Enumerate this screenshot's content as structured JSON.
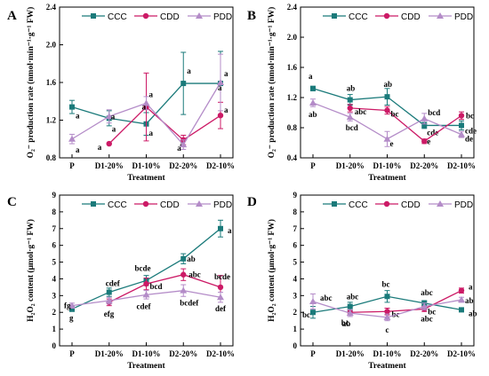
{
  "series_style": [
    {
      "color": "#1a7a7a",
      "marker": "square"
    },
    {
      "color": "#cc1a66",
      "marker": "circle"
    },
    {
      "color": "#b48cc8",
      "marker": "triangle"
    }
  ],
  "chart_data": [
    {
      "panel": "A",
      "type": "line",
      "categories": [
        "P",
        "D1-20%",
        "D1-10%",
        "D2-20%",
        "D2-10%"
      ],
      "xlabel": "Treatment",
      "ylabel": "O₂⁻ production rate (nmol·min⁻¹·g⁻¹ FW)",
      "ylim": [
        0.8,
        2.4
      ],
      "yticks": [
        "0.8",
        "1.2",
        "1.6",
        "2.0",
        "2.4"
      ],
      "ytick_values": [
        0.8,
        1.2,
        1.6,
        2.0,
        2.4
      ],
      "legend": [
        "CCC",
        "CDD",
        "PDD"
      ],
      "series": [
        {
          "name": "CCC",
          "points": [
            {
              "x": "P",
              "y": 1.34,
              "err": 0.07
            },
            {
              "x": "D1-20%",
              "y": 1.22,
              "err": 0.08
            },
            {
              "x": "D1-10%",
              "y": 1.16,
              "err": 0.12
            },
            {
              "x": "D2-20%",
              "y": 1.59,
              "err": 0.33
            },
            {
              "x": "D2-10%",
              "y": 1.59,
              "err": 0.34
            }
          ],
          "labels": [
            "a",
            "a",
            "a",
            "a",
            "a"
          ]
        },
        {
          "name": "CDD",
          "points": [
            {
              "x": "P",
              "y": null,
              "err": null
            },
            {
              "x": "D1-20%",
              "y": 0.95,
              "err": 0.0
            },
            {
              "x": "D1-10%",
              "y": 1.34,
              "err": 0.36
            },
            {
              "x": "D2-20%",
              "y": 0.99,
              "err": 0.05
            },
            {
              "x": "D2-10%",
              "y": 1.25,
              "err": 0.14
            }
          ],
          "labels": [
            "",
            "a",
            "a",
            "a",
            "a"
          ]
        },
        {
          "name": "PDD",
          "points": [
            {
              "x": "P",
              "y": 1.0,
              "err": 0.05
            },
            {
              "x": "D1-20%",
              "y": 1.24,
              "err": 0.07
            },
            {
              "x": "D1-10%",
              "y": 1.38,
              "err": 0.07
            },
            {
              "x": "D2-20%",
              "y": 0.94,
              "err": 0.05
            },
            {
              "x": "D2-10%",
              "y": 1.6,
              "err": 0.3
            }
          ],
          "labels": [
            "a",
            "a",
            "a",
            "a",
            "a"
          ]
        }
      ]
    },
    {
      "panel": "B",
      "type": "line",
      "categories": [
        "P",
        "D1-20%",
        "D1-10%",
        "D2-20%",
        "D2-10%"
      ],
      "xlabel": "Treatment",
      "ylabel": "O₂⁻ production rate (nmol·min⁻¹·g⁻¹ FW)",
      "ylim": [
        0.4,
        2.4
      ],
      "yticks": [
        "0.4",
        "0.8",
        "1.2",
        "1.6",
        "2.0",
        "2.4"
      ],
      "ytick_values": [
        0.4,
        0.8,
        1.2,
        1.6,
        2.0,
        2.4
      ],
      "legend": [
        "CCC",
        "CDD",
        "PDD"
      ],
      "series": [
        {
          "name": "CCC",
          "points": [
            {
              "x": "P",
              "y": 1.32,
              "err": 0.03
            },
            {
              "x": "D1-20%",
              "y": 1.17,
              "err": 0.07
            },
            {
              "x": "D1-10%",
              "y": 1.21,
              "err": 0.11
            },
            {
              "x": "D2-20%",
              "y": 0.83,
              "err": 0.04
            },
            {
              "x": "D2-10%",
              "y": 0.83,
              "err": 0.06
            }
          ],
          "labels": [
            "a",
            "ab",
            "ab",
            "cde",
            "cde"
          ]
        },
        {
          "name": "CDD",
          "points": [
            {
              "x": "P",
              "y": null,
              "err": null
            },
            {
              "x": "D1-20%",
              "y": 1.06,
              "err": 0.05
            },
            {
              "x": "D1-10%",
              "y": 1.03,
              "err": 0.05
            },
            {
              "x": "D2-20%",
              "y": 0.62,
              "err": 0.03
            },
            {
              "x": "D2-10%",
              "y": 0.96,
              "err": 0.05
            }
          ],
          "labels": [
            "",
            "abc",
            "bc",
            "e",
            "bc"
          ]
        },
        {
          "name": "PDD",
          "points": [
            {
              "x": "P",
              "y": 1.13,
              "err": 0.05
            },
            {
              "x": "D1-20%",
              "y": 0.94,
              "err": 0.05
            },
            {
              "x": "D1-10%",
              "y": 0.65,
              "err": 0.1
            },
            {
              "x": "D2-20%",
              "y": 0.92,
              "err": 0.07
            },
            {
              "x": "D2-10%",
              "y": 0.71,
              "err": 0.04
            }
          ],
          "labels": [
            "ab",
            "bcd",
            "e",
            "bcd",
            "de"
          ]
        }
      ]
    },
    {
      "panel": "C",
      "type": "line",
      "categories": [
        "P",
        "D1-20%",
        "D1-10%",
        "D2-20%",
        "D2-10%"
      ],
      "xlabel": "Treatment",
      "ylabel": "H₂O₂ content (μmol·g⁻¹ FW)",
      "ylim": [
        0,
        9
      ],
      "yticks": [
        "0",
        "1",
        "2",
        "3",
        "4",
        "5",
        "6",
        "7",
        "8",
        "9"
      ],
      "ytick_values": [
        0,
        1,
        2,
        3,
        4,
        5,
        6,
        7,
        8,
        9
      ],
      "legend": [
        "CCC",
        "CDD",
        "PDD"
      ],
      "series": [
        {
          "name": "CCC",
          "points": [
            {
              "x": "P",
              "y": 2.2,
              "err": 0.15
            },
            {
              "x": "D1-20%",
              "y": 3.2,
              "err": 0.25
            },
            {
              "x": "D1-10%",
              "y": 3.9,
              "err": 0.3
            },
            {
              "x": "D2-20%",
              "y": 5.2,
              "err": 0.3
            },
            {
              "x": "D2-10%",
              "y": 7.0,
              "err": 0.5
            }
          ],
          "labels": [
            "g",
            "cdef",
            "bcde",
            "ab",
            "a"
          ]
        },
        {
          "name": "CDD",
          "points": [
            {
              "x": "P",
              "y": null,
              "err": null
            },
            {
              "x": "D1-20%",
              "y": 2.6,
              "err": 0.2
            },
            {
              "x": "D1-10%",
              "y": 3.7,
              "err": 0.35
            },
            {
              "x": "D2-20%",
              "y": 4.25,
              "err": 0.35
            },
            {
              "x": "D2-10%",
              "y": 3.5,
              "err": 0.7
            }
          ],
          "labels": [
            "",
            "efg",
            "bcd",
            "abc",
            "bcde"
          ]
        },
        {
          "name": "PDD",
          "points": [
            {
              "x": "P",
              "y": 2.4,
              "err": 0.15
            },
            {
              "x": "D1-20%",
              "y": 2.7,
              "err": 0.2
            },
            {
              "x": "D1-10%",
              "y": 3.05,
              "err": 0.25
            },
            {
              "x": "D2-20%",
              "y": 3.3,
              "err": 0.35
            },
            {
              "x": "D2-10%",
              "y": 2.9,
              "err": 0.3
            }
          ],
          "labels": [
            "fg",
            "",
            "cdef",
            "bcdef",
            "def"
          ]
        }
      ]
    },
    {
      "panel": "D",
      "type": "line",
      "categories": [
        "P",
        "D1-20%",
        "D1-10%",
        "D2-20%",
        "D2-10%"
      ],
      "xlabel": "Treatment",
      "ylabel": "H₂O₂ content (μmol·g⁻¹ FW)",
      "ylim": [
        0,
        9
      ],
      "yticks": [
        "0",
        "1",
        "2",
        "3",
        "4",
        "5",
        "6",
        "7",
        "8",
        "9"
      ],
      "ytick_values": [
        0,
        1,
        2,
        3,
        4,
        5,
        6,
        7,
        8,
        9
      ],
      "legend": [
        "CCC",
        "CDD",
        "PDD"
      ],
      "series": [
        {
          "name": "CCC",
          "points": [
            {
              "x": "P",
              "y": 2.0,
              "err": 0.35
            },
            {
              "x": "D1-20%",
              "y": 2.35,
              "err": 0.25
            },
            {
              "x": "D1-10%",
              "y": 2.95,
              "err": 0.35
            },
            {
              "x": "D2-20%",
              "y": 2.55,
              "err": 0.15
            },
            {
              "x": "D2-10%",
              "y": 2.15,
              "err": 0.1
            }
          ],
          "labels": [
            "bc",
            "abc",
            "bc",
            "abc",
            "ab"
          ]
        },
        {
          "name": "CDD",
          "points": [
            {
              "x": "P",
              "y": null,
              "err": null
            },
            {
              "x": "D1-20%",
              "y": 2.0,
              "err": 0.15
            },
            {
              "x": "D1-10%",
              "y": 2.05,
              "err": 0.2
            },
            {
              "x": "D2-20%",
              "y": 2.2,
              "err": 0.15
            },
            {
              "x": "D2-10%",
              "y": 3.3,
              "err": 0.15
            }
          ],
          "labels": [
            "",
            "bc",
            "bc",
            "bc",
            "a"
          ]
        },
        {
          "name": "PDD",
          "points": [
            {
              "x": "P",
              "y": 2.65,
              "err": 0.45
            },
            {
              "x": "D1-20%",
              "y": 1.95,
              "err": 0.2
            },
            {
              "x": "D1-10%",
              "y": 1.7,
              "err": 0.2
            },
            {
              "x": "D2-20%",
              "y": 2.35,
              "err": 0.2
            },
            {
              "x": "D2-10%",
              "y": 2.75,
              "err": 0.15
            }
          ],
          "labels": [
            "abc",
            "ab",
            "c",
            "abc",
            "ab"
          ]
        }
      ]
    }
  ]
}
